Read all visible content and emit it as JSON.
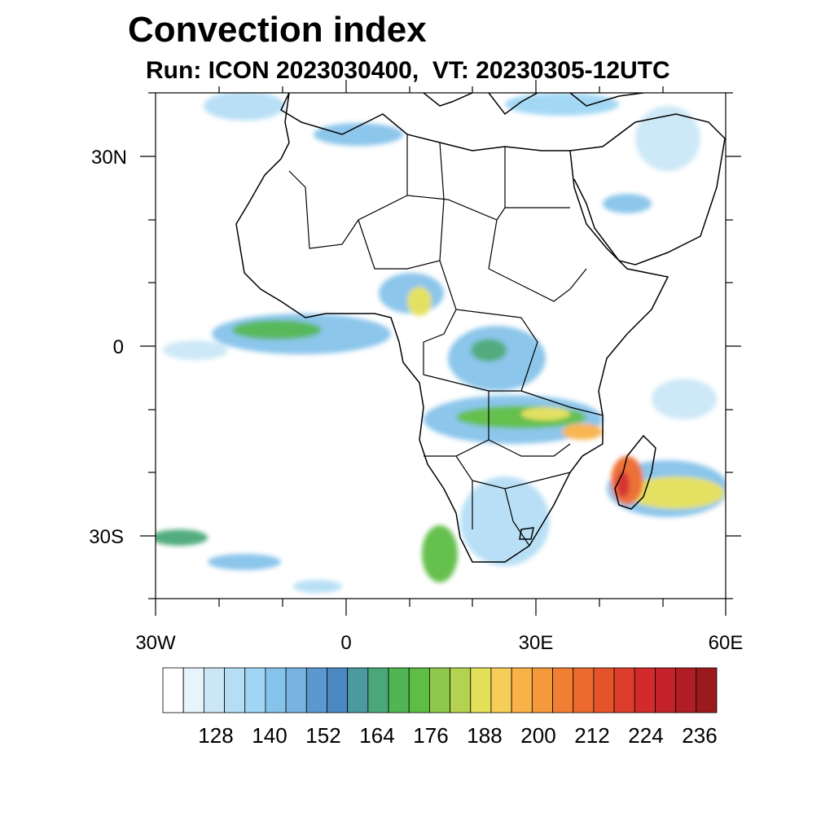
{
  "title": "Convection index",
  "subtitle": "Run: ICON 2023030400,  VT: 20230305-12UTC",
  "axes": {
    "lon_labels": [
      "30W",
      "0",
      "30E",
      "60E"
    ],
    "lat_labels": [
      "30N",
      "0",
      "30S"
    ]
  },
  "colorbar": {
    "labels": [
      "128",
      "140",
      "152",
      "164",
      "176",
      "188",
      "200",
      "212",
      "224",
      "236"
    ],
    "colors": [
      "#ffffff",
      "#e8f4fb",
      "#cbe7f6",
      "#b5def5",
      "#9fd6f4",
      "#86c3ea",
      "#78b4e2",
      "#5a98cf",
      "#4b87c0",
      "#4a9aa0",
      "#4aa878",
      "#4fb653",
      "#5dbd45",
      "#8fc94c",
      "#b3d24f",
      "#e3e05a",
      "#f6cd57",
      "#f8b248",
      "#f49a3c",
      "#f07f33",
      "#ec6a2e",
      "#e4542b",
      "#dd3d2b",
      "#d32a2b",
      "#c3222a",
      "#b01d24",
      "#9a1a1d"
    ]
  },
  "colors": {
    "border": "#000000",
    "frame": "#000000"
  }
}
